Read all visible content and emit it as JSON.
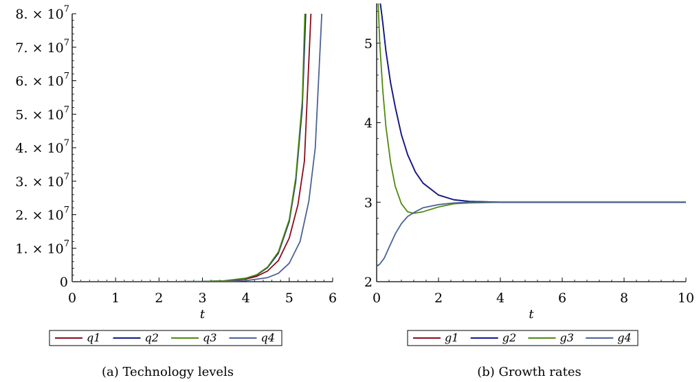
{
  "chart_data": [
    {
      "type": "line",
      "caption": "(a) Technology levels",
      "xlabel": "t",
      "ylabel": "",
      "xlim": [
        0,
        6
      ],
      "ylim": [
        0,
        80000000
      ],
      "x_ticks": [
        "0",
        "1",
        "2",
        "3",
        "4",
        "5",
        "6"
      ],
      "y_ticks": [
        {
          "value": 0,
          "mantissa": "0",
          "exp": ""
        },
        {
          "value": 10000000,
          "mantissa": "1. × 10",
          "exp": "7"
        },
        {
          "value": 20000000,
          "mantissa": "2. × 10",
          "exp": "7"
        },
        {
          "value": 30000000,
          "mantissa": "3. × 10",
          "exp": "7"
        },
        {
          "value": 40000000,
          "mantissa": "4. × 10",
          "exp": "7"
        },
        {
          "value": 50000000,
          "mantissa": "5. × 10",
          "exp": "7"
        },
        {
          "value": 60000000,
          "mantissa": "6. × 10",
          "exp": "7"
        },
        {
          "value": 70000000,
          "mantissa": "7. × 10",
          "exp": "7"
        },
        {
          "value": 80000000,
          "mantissa": "8. × 10",
          "exp": "7"
        }
      ],
      "series": [
        {
          "name": "q1",
          "color": "#8b0a1a",
          "x": [
            0,
            1,
            2,
            3,
            3.5,
            4,
            4.25,
            4.5,
            4.75,
            5,
            5.2,
            5.35,
            5.5
          ],
          "y": [
            0,
            0,
            0,
            50000,
            200000,
            800000,
            1600000,
            3200000,
            6300000,
            13000000,
            23000000,
            36000000,
            80000000
          ]
        },
        {
          "name": "q2",
          "color": "#0c1a8c",
          "x": [
            0,
            1,
            2,
            3,
            3.5,
            4,
            4.25,
            4.5,
            4.75,
            5,
            5.15,
            5.3,
            5.38
          ],
          "y": [
            0,
            0,
            0,
            60000,
            250000,
            1000000,
            2000000,
            4200000,
            8500000,
            18000000,
            30000000,
            52000000,
            80000000
          ]
        },
        {
          "name": "q3",
          "color": "#4d8a0f",
          "x": [
            0,
            1,
            2,
            3,
            3.5,
            4,
            4.25,
            4.5,
            4.75,
            5,
            5.15,
            5.3,
            5.36
          ],
          "y": [
            0,
            0,
            0,
            60000,
            260000,
            1050000,
            2100000,
            4400000,
            8900000,
            18500000,
            31000000,
            54000000,
            80000000
          ]
        },
        {
          "name": "q4",
          "color": "#4a6296",
          "x": [
            0,
            1,
            2,
            3,
            3.5,
            4,
            4.5,
            4.75,
            5,
            5.25,
            5.45,
            5.6,
            5.75
          ],
          "y": [
            0,
            0,
            0,
            20000,
            80000,
            300000,
            1200000,
            2500000,
            5500000,
            12000000,
            24000000,
            40000000,
            80000000
          ]
        }
      ],
      "legend": {
        "placement": "bottom",
        "entries": [
          "q1",
          "q2",
          "q3",
          "q4"
        ]
      }
    },
    {
      "type": "line",
      "caption": "(b) Growth rates",
      "xlabel": "t",
      "ylabel": "",
      "xlim": [
        0,
        10
      ],
      "ylim": [
        2,
        5.5
      ],
      "x_ticks": [
        "0",
        "2",
        "4",
        "6",
        "8",
        "10"
      ],
      "y_ticks": [
        "2",
        "3",
        "4",
        "5"
      ],
      "series": [
        {
          "name": "g1",
          "color": "#8b0a1a",
          "x": [
            0.12,
            0.2,
            0.3,
            0.45,
            0.6,
            0.8,
            1.0,
            1.25,
            1.5,
            2,
            2.5,
            3,
            4,
            10
          ],
          "y": [
            5.5,
            5.25,
            4.9,
            4.5,
            4.2,
            3.85,
            3.6,
            3.38,
            3.24,
            3.09,
            3.03,
            3.01,
            3.0,
            3.0
          ]
        },
        {
          "name": "g2",
          "color": "#0c1a8c",
          "x": [
            0.12,
            0.2,
            0.3,
            0.45,
            0.6,
            0.8,
            1.0,
            1.25,
            1.5,
            2,
            2.5,
            3,
            4,
            10
          ],
          "y": [
            5.5,
            5.25,
            4.9,
            4.5,
            4.2,
            3.85,
            3.6,
            3.38,
            3.24,
            3.09,
            3.03,
            3.01,
            3.0,
            3.0
          ]
        },
        {
          "name": "g3",
          "color": "#4d8a0f",
          "x": [
            0.05,
            0.1,
            0.2,
            0.3,
            0.45,
            0.6,
            0.8,
            1.0,
            1.2,
            1.5,
            2,
            2.5,
            3,
            4,
            10
          ],
          "y": [
            5.5,
            5.0,
            4.4,
            3.95,
            3.5,
            3.2,
            2.98,
            2.88,
            2.86,
            2.88,
            2.94,
            2.98,
            2.99,
            3.0,
            3.0
          ]
        },
        {
          "name": "g4",
          "color": "#4a6296",
          "x": [
            0,
            0.1,
            0.25,
            0.4,
            0.6,
            0.8,
            1.0,
            1.25,
            1.5,
            2,
            2.5,
            3,
            4,
            10
          ],
          "y": [
            2.2,
            2.22,
            2.3,
            2.43,
            2.6,
            2.73,
            2.82,
            2.88,
            2.93,
            2.97,
            2.99,
            3.0,
            3.0,
            3.0
          ]
        }
      ],
      "legend": {
        "placement": "bottom",
        "entries": [
          "g1",
          "g2",
          "g3",
          "g4"
        ]
      }
    }
  ]
}
